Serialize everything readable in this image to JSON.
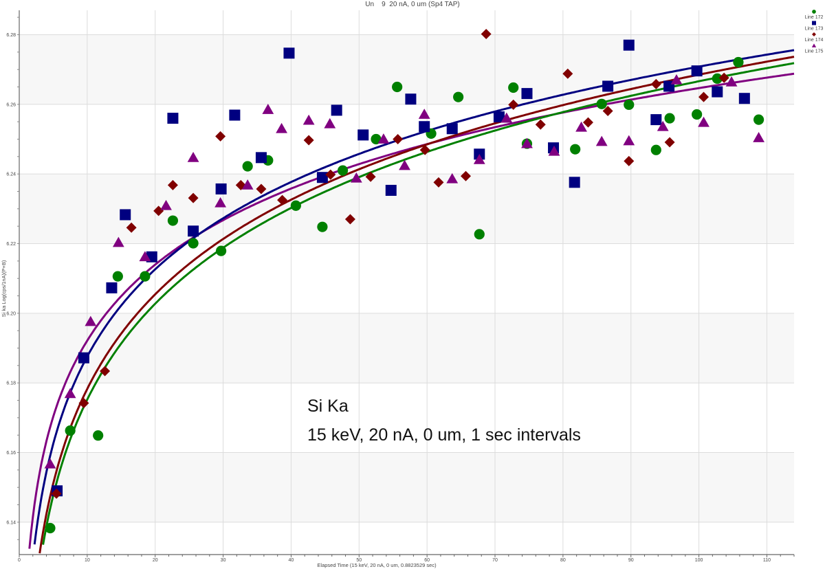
{
  "chart_data": {
    "type": "scatter",
    "title": "Un    9  20 nA, 0 um (Sp4 TAP)",
    "xlabel": "Elapsed Time (15 keV, 20 nA, 0 um, 0.8823529 sec)",
    "ylabel": "Si ka Log(cps/1nA)(P+B)",
    "xlim": [
      0,
      114
    ],
    "ylim": [
      6.1307,
      6.287
    ],
    "x_ticks": [
      "0",
      "10",
      "20",
      "30",
      "40",
      "50",
      "60",
      "70",
      "80",
      "90",
      "100",
      "110"
    ],
    "y_ticks": [
      "6.14",
      "6.16",
      "6.18",
      "6.20",
      "6.22",
      "6.24",
      "6.26",
      "6.28"
    ],
    "grid": true,
    "legend_placement": "right",
    "annotation": [
      "Si Ka",
      "15 keV, 20 nA, 0 um, 1 sec intervals"
    ],
    "series": [
      {
        "name": "Line 172",
        "marker": "circle",
        "color": "#008000",
        "x": [
          4.55,
          7.5,
          11.6,
          14.5,
          18.5,
          22.6,
          25.6,
          29.7,
          33.6,
          36.6,
          40.7,
          44.6,
          47.6,
          52.5,
          55.6,
          60.6,
          64.6,
          67.7,
          72.7,
          74.7,
          81.8,
          85.7,
          89.7,
          93.7,
          95.7,
          99.7,
          102.7,
          105.8,
          108.8
        ],
        "y": [
          6.1383,
          6.1663,
          6.1649,
          6.2106,
          6.2106,
          6.2266,
          6.2201,
          6.2179,
          6.2422,
          6.2439,
          6.2309,
          6.2248,
          6.241,
          6.25,
          6.265,
          6.2516,
          6.2621,
          6.2227,
          6.2648,
          6.2487,
          6.2471,
          6.2601,
          6.2599,
          6.2469,
          6.256,
          6.2571,
          6.2674,
          6.2721,
          6.2556
        ],
        "fit": {
          "form": "a + b*ln(x)",
          "a": 6.0838,
          "b": 0.0397
        }
      },
      {
        "name": "Line 173",
        "marker": "square",
        "color": "#000080",
        "x": [
          5.57,
          9.5,
          13.6,
          15.6,
          19.5,
          22.6,
          25.6,
          29.7,
          31.7,
          35.6,
          39.7,
          44.6,
          46.7,
          50.6,
          54.7,
          57.6,
          59.6,
          63.7,
          67.7,
          70.6,
          74.7,
          78.6,
          81.7,
          86.6,
          89.7,
          93.7,
          95.6,
          99.7,
          102.7,
          106.7
        ],
        "y": [
          6.149,
          6.1872,
          6.2073,
          6.2283,
          6.2162,
          6.256,
          6.2236,
          6.2357,
          6.2569,
          6.2447,
          6.2747,
          6.239,
          6.2583,
          6.2512,
          6.2353,
          6.2615,
          6.2536,
          6.253,
          6.2457,
          6.2564,
          6.2631,
          6.2475,
          6.2376,
          6.2652,
          6.277,
          6.2556,
          6.2652,
          6.2696,
          6.2636,
          6.2617
        ],
        "fit": {
          "form": "a + b*ln(x)",
          "a": 6.1043,
          "b": 0.03616
        }
      },
      {
        "name": "Line 174",
        "marker": "diamond",
        "color": "#800000",
        "x": [
          5.47,
          9.5,
          12.6,
          16.5,
          20.5,
          22.6,
          25.6,
          29.6,
          32.6,
          35.6,
          38.7,
          42.6,
          45.8,
          48.7,
          51.7,
          55.7,
          59.7,
          61.7,
          65.7,
          68.7,
          72.7,
          76.7,
          80.7,
          83.7,
          86.6,
          89.7,
          93.7,
          95.7,
          100.7,
          103.7
        ],
        "y": [
          6.1482,
          6.1742,
          6.1834,
          6.2246,
          6.2294,
          6.2368,
          6.2331,
          6.2508,
          6.2368,
          6.2357,
          6.2325,
          6.2497,
          6.2398,
          6.227,
          6.2392,
          6.25,
          6.2469,
          6.2376,
          6.2394,
          6.2802,
          6.2599,
          6.2542,
          6.2688,
          6.2548,
          6.2581,
          6.2437,
          6.2658,
          6.2491,
          6.2621,
          6.2676
        ],
        "fit": {
          "form": "a + b*ln(x)",
          "a": 6.088,
          "b": 0.0392
        }
      },
      {
        "name": "Line 175",
        "marker": "triangle",
        "color": "#800080",
        "x": [
          4.55,
          7.5,
          10.5,
          14.6,
          18.5,
          21.6,
          25.6,
          29.6,
          33.6,
          36.6,
          38.6,
          42.6,
          45.7,
          49.6,
          53.6,
          56.7,
          59.6,
          63.7,
          67.7,
          71.7,
          74.7,
          78.7,
          82.7,
          85.7,
          89.7,
          94.7,
          96.7,
          100.7,
          104.8,
          108.8
        ],
        "y": [
          6.1567,
          6.1769,
          6.1976,
          6.2203,
          6.2162,
          6.2309,
          6.2447,
          6.2317,
          6.2368,
          6.2585,
          6.253,
          6.2554,
          6.2544,
          6.2388,
          6.25,
          6.2424,
          6.2571,
          6.2386,
          6.2441,
          6.256,
          6.2487,
          6.2465,
          6.2534,
          6.2493,
          6.2495,
          6.2536,
          6.267,
          6.2548,
          6.2664,
          6.2504
        ],
        "fit": {
          "form": "a + b*ln(x)",
          "a": 6.1196,
          "b": 0.0315
        }
      }
    ]
  }
}
